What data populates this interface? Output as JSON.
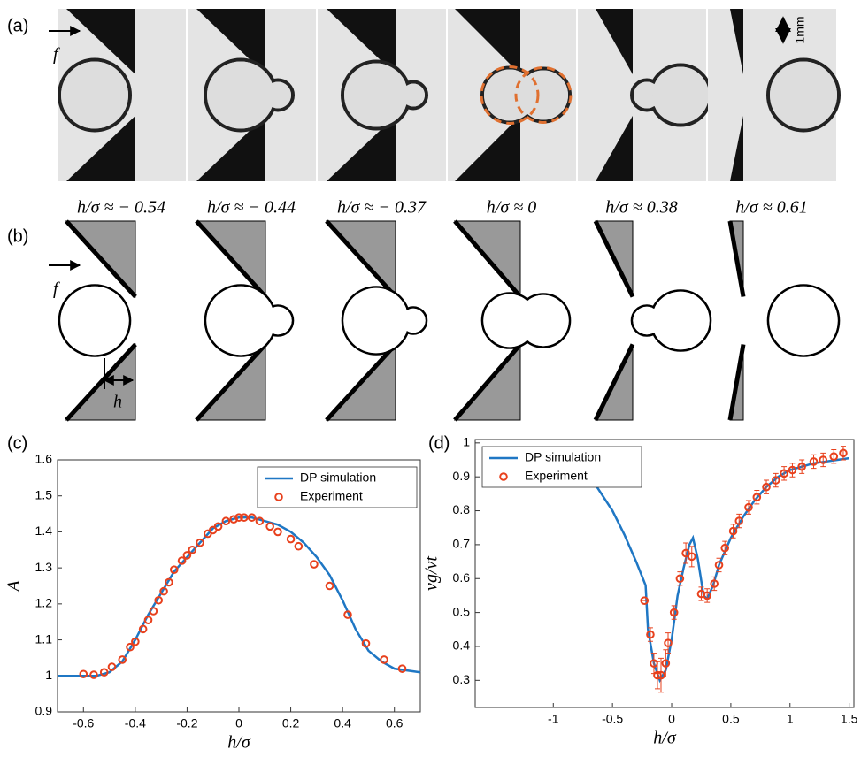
{
  "panel_labels": [
    "(a)",
    "(b)",
    "(c)",
    "(d)"
  ],
  "scale_bar": "1mm",
  "force_label": "f",
  "gap_label": "h",
  "frame_labels": [
    "h/σ ≈ − 0.54",
    "h/σ ≈ − 0.44",
    "h/σ ≈ − 0.37",
    "h/σ ≈ 0",
    "h/σ ≈ 0.38",
    "h/σ ≈ 0.61"
  ],
  "chart_data": [
    {
      "type": "line",
      "xlabel": "h/σ",
      "ylabel": "A",
      "xlim": [
        -0.7,
        0.7
      ],
      "ylim": [
        0.9,
        1.6
      ],
      "xticks": [
        -0.6,
        -0.4,
        -0.2,
        0,
        0.2,
        0.4,
        0.6
      ],
      "yticks": [
        0.9,
        1,
        1.1,
        1.2,
        1.3,
        1.4,
        1.5,
        1.6
      ],
      "legend": "upper right",
      "series": [
        {
          "name": "DP simulation",
          "color": "#1f77c4",
          "style": "line",
          "x": [
            -0.7,
            -0.6,
            -0.55,
            -0.5,
            -0.45,
            -0.4,
            -0.35,
            -0.3,
            -0.25,
            -0.2,
            -0.15,
            -0.1,
            -0.05,
            0,
            0.05,
            0.1,
            0.15,
            0.2,
            0.25,
            0.3,
            0.35,
            0.4,
            0.45,
            0.5,
            0.55,
            0.6,
            0.7
          ],
          "values": [
            1,
            1,
            1,
            1.01,
            1.04,
            1.1,
            1.17,
            1.23,
            1.29,
            1.33,
            1.37,
            1.41,
            1.43,
            1.44,
            1.44,
            1.43,
            1.42,
            1.4,
            1.37,
            1.33,
            1.28,
            1.21,
            1.13,
            1.07,
            1.04,
            1.02,
            1.01
          ]
        },
        {
          "name": "Experiment",
          "color": "#e8401c",
          "style": "markers",
          "x": [
            -0.6,
            -0.56,
            -0.52,
            -0.49,
            -0.45,
            -0.42,
            -0.4,
            -0.37,
            -0.35,
            -0.33,
            -0.31,
            -0.29,
            -0.27,
            -0.25,
            -0.22,
            -0.2,
            -0.18,
            -0.15,
            -0.12,
            -0.1,
            -0.08,
            -0.05,
            -0.02,
            0,
            0.02,
            0.05,
            0.08,
            0.12,
            0.15,
            0.2,
            0.23,
            0.29,
            0.35,
            0.42,
            0.49,
            0.56,
            0.63
          ],
          "values": [
            1.005,
            1.003,
            1.01,
            1.025,
            1.045,
            1.08,
            1.095,
            1.13,
            1.155,
            1.18,
            1.21,
            1.235,
            1.26,
            1.295,
            1.32,
            1.335,
            1.35,
            1.37,
            1.395,
            1.405,
            1.415,
            1.43,
            1.435,
            1.44,
            1.44,
            1.44,
            1.43,
            1.415,
            1.4,
            1.38,
            1.36,
            1.31,
            1.25,
            1.17,
            1.09,
            1.045,
            1.02
          ]
        }
      ]
    },
    {
      "type": "line",
      "xlabel": "h/σ",
      "ylabel": "vg/vt",
      "xlim": [
        -1.66,
        1.54
      ],
      "ylim": [
        0.22,
        1.01
      ],
      "xticks": [
        -1,
        -0.5,
        0,
        0.5,
        1,
        1.5
      ],
      "yticks": [
        0.3,
        0.4,
        0.5,
        0.6,
        0.7,
        0.8,
        0.9,
        1
      ],
      "legend": "upper left",
      "series": [
        {
          "name": "DP simulation",
          "color": "#1f77c4",
          "style": "line",
          "x": [
            -0.65,
            -0.5,
            -0.4,
            -0.3,
            -0.22,
            -0.2,
            -0.15,
            -0.1,
            -0.05,
            0,
            0.05,
            0.1,
            0.15,
            0.18,
            0.22,
            0.27,
            0.3,
            0.35,
            0.4,
            0.5,
            0.6,
            0.7,
            0.8,
            0.9,
            1,
            1.1,
            1.2,
            1.3,
            1.4,
            1.5
          ],
          "values": [
            0.88,
            0.8,
            0.73,
            0.65,
            0.58,
            0.45,
            0.35,
            0.3,
            0.33,
            0.42,
            0.55,
            0.63,
            0.7,
            0.72,
            0.66,
            0.55,
            0.54,
            0.58,
            0.64,
            0.72,
            0.78,
            0.83,
            0.87,
            0.9,
            0.92,
            0.93,
            0.94,
            0.945,
            0.95,
            0.955
          ]
        },
        {
          "name": "Experiment",
          "color": "#e8401c",
          "style": "markers",
          "x": [
            -0.23,
            -0.18,
            -0.15,
            -0.12,
            -0.09,
            -0.05,
            -0.03,
            0.02,
            0.07,
            0.12,
            0.17,
            0.25,
            0.3,
            0.36,
            0.4,
            0.45,
            0.52,
            0.57,
            0.65,
            0.72,
            0.8,
            0.88,
            0.95,
            1.02,
            1.1,
            1.2,
            1.28,
            1.37,
            1.45
          ],
          "values": [
            0.535,
            0.435,
            0.35,
            0.315,
            0.315,
            0.35,
            0.41,
            0.5,
            0.6,
            0.675,
            0.665,
            0.555,
            0.55,
            0.585,
            0.64,
            0.69,
            0.74,
            0.77,
            0.81,
            0.84,
            0.87,
            0.89,
            0.91,
            0.92,
            0.93,
            0.945,
            0.95,
            0.96,
            0.97
          ],
          "errors": [
            0,
            0.02,
            0.03,
            0.04,
            0.05,
            0.04,
            0.03,
            0.02,
            0.02,
            0.03,
            0.03,
            0.02,
            0.02,
            0.02,
            0.02,
            0.02,
            0.02,
            0.02,
            0.02,
            0.02,
            0.02,
            0.02,
            0.02,
            0.02,
            0.02,
            0.02,
            0.02,
            0.02,
            0.02
          ]
        }
      ]
    }
  ]
}
